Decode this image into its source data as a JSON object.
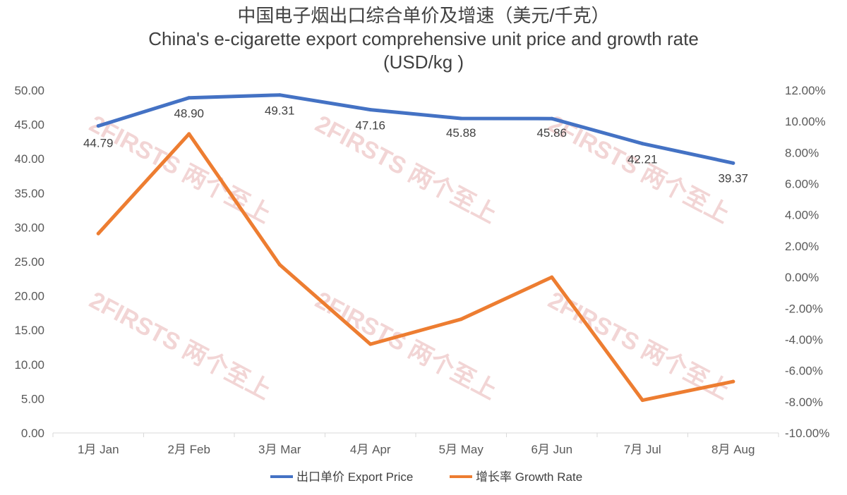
{
  "chart_data": {
    "type": "line",
    "title": "中国电子烟出口综合单价及增速（美元/千克）",
    "subtitle": "China's e-cigarette export comprehensive unit price and growth rate",
    "subtitle2": "(USD/kg )",
    "categories": [
      "1月 Jan",
      "2月 Feb",
      "3月 Mar",
      "4月 Apr",
      "5月 May",
      "6月 Jun",
      "7月 Jul",
      "8月 Aug"
    ],
    "series": [
      {
        "name": "出口单价 Export Price",
        "axis": "left",
        "color": "#4472C4",
        "values": [
          44.79,
          48.9,
          49.31,
          47.16,
          45.88,
          45.86,
          42.21,
          39.37
        ],
        "labels": [
          "44.79",
          "48.90",
          "49.31",
          "47.16",
          "45.88",
          "45.86",
          "42.21",
          "39.37"
        ]
      },
      {
        "name": "增长率 Growth Rate",
        "axis": "right",
        "color": "#ED7D31",
        "values": [
          2.8,
          9.2,
          0.8,
          -4.3,
          -2.7,
          0.0,
          -7.9,
          -6.7
        ]
      }
    ],
    "ylim_left": [
      0,
      50
    ],
    "yticks_left": [
      "0.00",
      "5.00",
      "10.00",
      "15.00",
      "20.00",
      "25.00",
      "30.00",
      "35.00",
      "40.00",
      "45.00",
      "50.00"
    ],
    "ylim_right": [
      -10,
      12
    ],
    "yticks_right": [
      "-10.00%",
      "-8.00%",
      "-6.00%",
      "-4.00%",
      "-2.00%",
      "0.00%",
      "2.00%",
      "4.00%",
      "6.00%",
      "8.00%",
      "10.00%",
      "12.00%"
    ],
    "grid": false,
    "legend_position": "bottom",
    "watermark": "2FIRSTS 两个至上"
  }
}
